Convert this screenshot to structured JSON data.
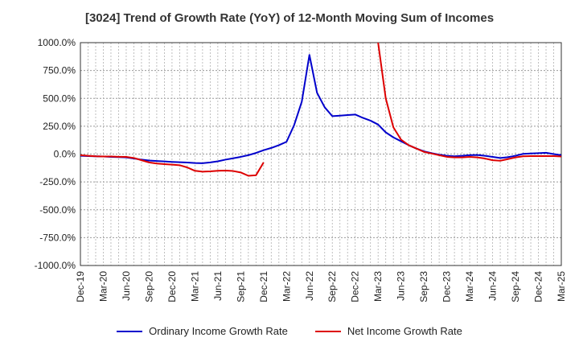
{
  "chart_data": {
    "type": "line",
    "title": "[3024]  Trend of Growth Rate (YoY) of 12-Month Moving Sum of Incomes",
    "xlabel": "",
    "ylabel": "",
    "y_unit_suffix": "%",
    "ylim": [
      -1000,
      1000
    ],
    "y_ticks": [
      "1000.0%",
      "750.0%",
      "500.0%",
      "250.0%",
      "0.0%",
      "-250.0%",
      "-500.0%",
      "-750.0%",
      "-1000.0%"
    ],
    "y_tick_values": [
      1000,
      750,
      500,
      250,
      0,
      -250,
      -500,
      -750,
      -1000
    ],
    "x_tick_labels": [
      "Dec-19",
      "Mar-20",
      "Jun-20",
      "Sep-20",
      "Dec-20",
      "Mar-21",
      "Jun-21",
      "Sep-21",
      "Dec-21",
      "Mar-22",
      "Jun-22",
      "Sep-22",
      "Dec-22",
      "Mar-23",
      "Jun-23",
      "Sep-23",
      "Dec-23",
      "Mar-24",
      "Jun-24",
      "Sep-24",
      "Dec-24",
      "Mar-25"
    ],
    "x_months": [
      "2019-12",
      "2020-01",
      "2020-02",
      "2020-03",
      "2020-04",
      "2020-05",
      "2020-06",
      "2020-07",
      "2020-08",
      "2020-09",
      "2020-10",
      "2020-11",
      "2020-12",
      "2021-01",
      "2021-02",
      "2021-03",
      "2021-04",
      "2021-05",
      "2021-06",
      "2021-07",
      "2021-08",
      "2021-09",
      "2021-10",
      "2021-11",
      "2021-12",
      "2022-01",
      "2022-02",
      "2022-03",
      "2022-04",
      "2022-05",
      "2022-06",
      "2022-07",
      "2022-08",
      "2022-09",
      "2022-10",
      "2022-11",
      "2022-12",
      "2023-01",
      "2023-02",
      "2023-03",
      "2023-04",
      "2023-05",
      "2023-06",
      "2023-07",
      "2023-08",
      "2023-09",
      "2023-10",
      "2023-11",
      "2023-12",
      "2024-01",
      "2024-02",
      "2024-03",
      "2024-04",
      "2024-05",
      "2024-06",
      "2024-07",
      "2024-08",
      "2024-09",
      "2024-10",
      "2024-11",
      "2024-12",
      "2025-01",
      "2025-02",
      "2025-03"
    ],
    "grid": true,
    "legend_position": "bottom",
    "series": [
      {
        "name": "Ordinary Income Growth Rate",
        "color": "#0000cc",
        "values": [
          -15,
          -18,
          -20,
          -22,
          -25,
          -27,
          -30,
          -40,
          -50,
          -58,
          -62,
          -66,
          -70,
          -73,
          -76,
          -80,
          -82,
          -75,
          -65,
          -50,
          -38,
          -25,
          -10,
          10,
          35,
          55,
          80,
          110,
          260,
          470,
          890,
          550,
          420,
          340,
          345,
          350,
          355,
          325,
          300,
          265,
          195,
          150,
          115,
          80,
          50,
          25,
          8,
          -5,
          -15,
          -20,
          -15,
          -10,
          -8,
          -15,
          -25,
          -35,
          -28,
          -15,
          2,
          5,
          8,
          12,
          0,
          -10
        ]
      },
      {
        "name": "Net Income Growth Rate",
        "color": "#dd0000",
        "values": [
          -10,
          -15,
          -20,
          -22,
          -22,
          -24,
          -25,
          -35,
          -55,
          -75,
          -85,
          -90,
          -95,
          -100,
          -120,
          -150,
          -158,
          -155,
          -150,
          -148,
          -152,
          -165,
          -195,
          -190,
          -75,
          null,
          null,
          null,
          null,
          null,
          null,
          null,
          null,
          null,
          null,
          null,
          null,
          null,
          null,
          1000,
          500,
          240,
          130,
          80,
          50,
          20,
          5,
          -10,
          -25,
          -30,
          -30,
          -25,
          -30,
          -40,
          -55,
          -60,
          -45,
          -30,
          -20,
          -18,
          -18,
          -18,
          -18,
          -22
        ]
      }
    ]
  }
}
